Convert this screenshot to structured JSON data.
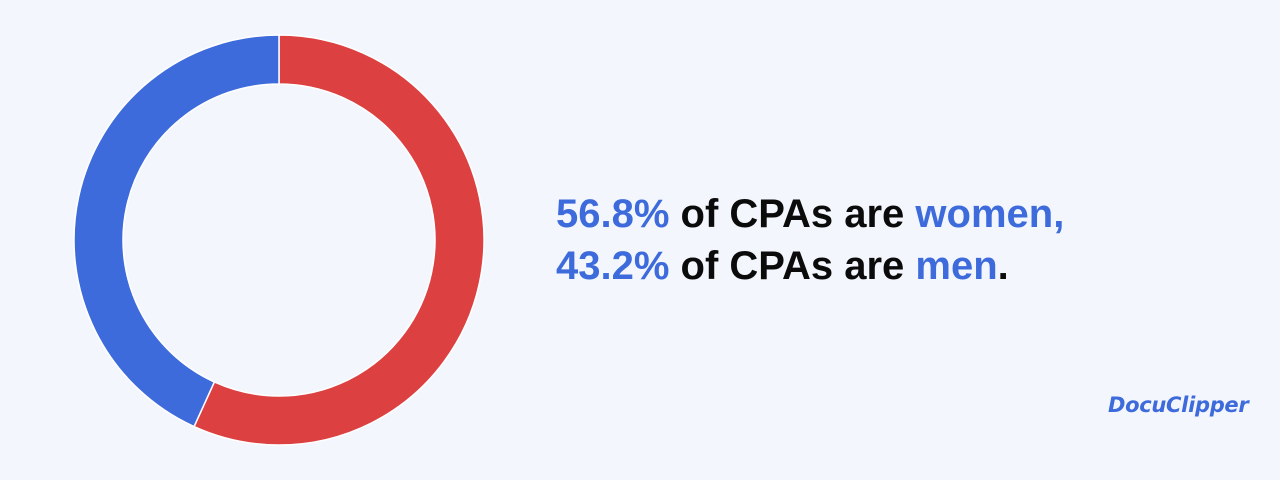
{
  "chart_data": {
    "type": "pie",
    "categories": [
      "women",
      "men"
    ],
    "values": [
      56.8,
      43.2
    ],
    "colors": [
      "#dc4040",
      "#3e6bdc"
    ],
    "title": "",
    "style": "donut",
    "start": "top",
    "direction": "clockwise"
  },
  "headline": {
    "line1": {
      "value": "56.8%",
      "middle": " of CPAs are ",
      "subject": "women,",
      "end": ""
    },
    "line2": {
      "value": "43.2%",
      "middle": " of CPAs are ",
      "subject": "men",
      "end": "."
    }
  },
  "brand": {
    "name": "DocuClipper"
  },
  "colors": {
    "accent": "#3e6bdc",
    "women": "#dc4040",
    "men": "#3e6bdc",
    "background": "#f3f6fc",
    "text": "#0b0b0b"
  }
}
